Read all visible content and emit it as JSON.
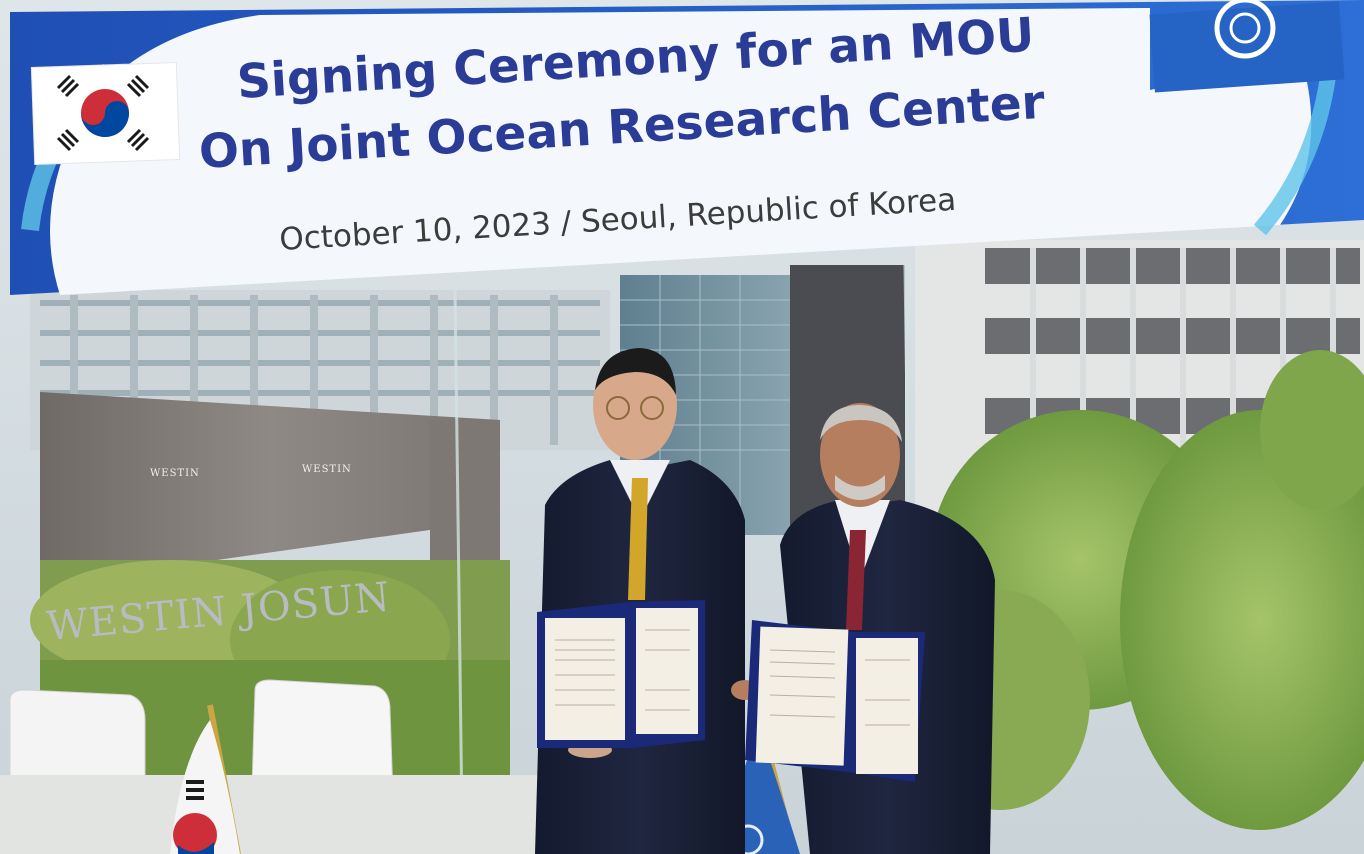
{
  "banner": {
    "title_line1": "Signing Ceremony for an MOU",
    "title_line2": "On Joint Ocean Research Center",
    "subtitle": "October 10, 2023 / Seoul, Republic of Korea"
  },
  "background": {
    "hotel_sign": "WESTIN JOSUN",
    "canopy_sign": "WESTIN"
  },
  "colors": {
    "banner_text": "#2a3c96",
    "banner_blue": "#1f4fb5",
    "flag_red": "#cd2e3a",
    "flag_blue": "#0047a0",
    "un_blue": "#2a62b8"
  }
}
